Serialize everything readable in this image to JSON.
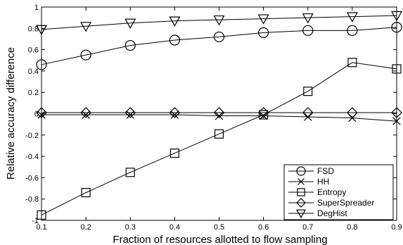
{
  "chart_data": {
    "type": "line",
    "xlabel": "Fraction of resources allotted to flow sampling",
    "ylabel": "Relative accuracy difference",
    "xlim": [
      0.1,
      0.9
    ],
    "ylim": [
      -1,
      1
    ],
    "x": [
      0.1,
      0.2,
      0.3,
      0.4,
      0.5,
      0.6,
      0.7,
      0.8,
      0.9
    ],
    "x_tick_labels": [
      "0.1",
      "0.2",
      "0.3",
      "0.4",
      "0.5",
      "0.6",
      "0.7",
      "0.8",
      "0.9"
    ],
    "y_ticks": [
      -1,
      -0.8,
      -0.6,
      -0.4,
      -0.2,
      0,
      0.2,
      0.4,
      0.6,
      0.8,
      1
    ],
    "y_tick_labels": [
      "-1",
      "-0.8",
      "-0.6",
      "-0.4",
      "-0.2",
      "0",
      "0.2",
      "0.4",
      "0.6",
      "0.8",
      "1"
    ],
    "grid": false,
    "legend_position": "bottom-right",
    "line_color": "#000000",
    "series": [
      {
        "name": "FSD",
        "marker": "circle",
        "values": [
          0.46,
          0.55,
          0.64,
          0.69,
          0.72,
          0.76,
          0.78,
          0.78,
          0.81
        ]
      },
      {
        "name": "HH",
        "marker": "x",
        "values": [
          -0.01,
          -0.01,
          -0.01,
          -0.01,
          -0.02,
          -0.02,
          -0.03,
          -0.04,
          -0.07
        ]
      },
      {
        "name": "Entropy",
        "marker": "square",
        "values": [
          -0.95,
          -0.74,
          -0.55,
          -0.37,
          -0.19,
          -0.01,
          0.21,
          0.48,
          0.42
        ]
      },
      {
        "name": "SuperSpreader",
        "marker": "diamond",
        "values": [
          0.01,
          0.01,
          0.01,
          0.01,
          0.01,
          0.01,
          0.01,
          0.01,
          0.01
        ]
      },
      {
        "name": "DegHist",
        "marker": "triangle-down",
        "values": [
          0.79,
          0.82,
          0.85,
          0.87,
          0.88,
          0.89,
          0.9,
          0.91,
          0.92
        ]
      }
    ]
  }
}
